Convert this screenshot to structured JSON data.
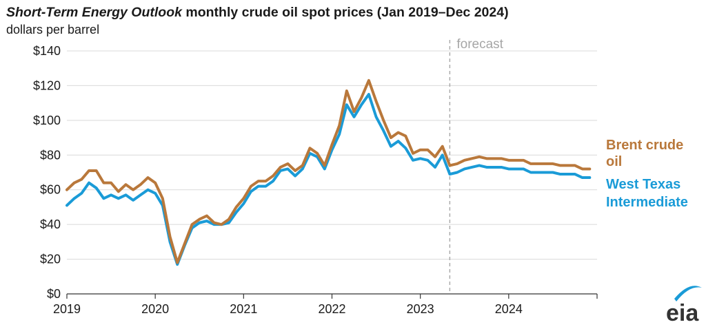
{
  "title_italic": "Short-Term Energy Outlook",
  "title_rest": " monthly crude oil spot prices (Jan 2019–Dec 2024)",
  "subtitle": "dollars per barrel",
  "forecast_label": "forecast",
  "logo_text": "eia",
  "colors": {
    "brent": "#b9783b",
    "wti": "#1a9bd7",
    "forecast_line": "#a6a6a6",
    "axis": "#333333",
    "grid": "#d9d9d9"
  },
  "chart_data": {
    "type": "line",
    "title": "Short-Term Energy Outlook monthly crude oil spot prices (Jan 2019–Dec 2024)",
    "ylabel": "dollars per barrel",
    "ylim": [
      0,
      140
    ],
    "yticks": [
      0,
      20,
      40,
      60,
      80,
      100,
      120,
      140
    ],
    "ytick_labels": [
      "$0",
      "$20",
      "$40",
      "$60",
      "$80",
      "$100",
      "$120",
      "$140"
    ],
    "xticks": [
      "2019",
      "2020",
      "2021",
      "2022",
      "2023",
      "2024"
    ],
    "x_range": [
      "2019-01",
      "2024-12"
    ],
    "grid": "horizontal",
    "forecast_start": "2023-05",
    "x": [
      "2019-01",
      "2019-02",
      "2019-03",
      "2019-04",
      "2019-05",
      "2019-06",
      "2019-07",
      "2019-08",
      "2019-09",
      "2019-10",
      "2019-11",
      "2019-12",
      "2020-01",
      "2020-02",
      "2020-03",
      "2020-04",
      "2020-05",
      "2020-06",
      "2020-07",
      "2020-08",
      "2020-09",
      "2020-10",
      "2020-11",
      "2020-12",
      "2021-01",
      "2021-02",
      "2021-03",
      "2021-04",
      "2021-05",
      "2021-06",
      "2021-07",
      "2021-08",
      "2021-09",
      "2021-10",
      "2021-11",
      "2021-12",
      "2022-01",
      "2022-02",
      "2022-03",
      "2022-04",
      "2022-05",
      "2022-06",
      "2022-07",
      "2022-08",
      "2022-09",
      "2022-10",
      "2022-11",
      "2022-12",
      "2023-01",
      "2023-02",
      "2023-03",
      "2023-04",
      "2023-05",
      "2023-06",
      "2023-07",
      "2023-08",
      "2023-09",
      "2023-10",
      "2023-11",
      "2023-12",
      "2024-01",
      "2024-02",
      "2024-03",
      "2024-04",
      "2024-05",
      "2024-06",
      "2024-07",
      "2024-08",
      "2024-09",
      "2024-10",
      "2024-11",
      "2024-12"
    ],
    "series": [
      {
        "name": "Brent crude oil",
        "values": [
          60,
          64,
          66,
          71,
          71,
          64,
          64,
          59,
          63,
          60,
          63,
          67,
          64,
          55,
          33,
          18,
          29,
          40,
          43,
          45,
          41,
          40,
          43,
          50,
          55,
          62,
          65,
          65,
          68,
          73,
          75,
          71,
          74,
          84,
          81,
          74,
          86,
          97,
          117,
          105,
          113,
          123,
          111,
          100,
          90,
          93,
          91,
          81,
          83,
          83,
          79,
          85,
          74,
          75,
          77,
          78,
          79,
          78,
          78,
          78,
          77,
          77,
          77,
          75,
          75,
          75,
          75,
          74,
          74,
          74,
          72,
          72
        ]
      },
      {
        "name": "West Texas Intermediate",
        "values": [
          51,
          55,
          58,
          64,
          61,
          55,
          57,
          55,
          57,
          54,
          57,
          60,
          58,
          51,
          30,
          17,
          28,
          38,
          41,
          42,
          40,
          40,
          41,
          47,
          52,
          59,
          62,
          62,
          65,
          71,
          72,
          68,
          72,
          81,
          79,
          72,
          83,
          92,
          109,
          102,
          109,
          115,
          102,
          94,
          85,
          88,
          84,
          77,
          78,
          77,
          73,
          80,
          69,
          70,
          72,
          73,
          74,
          73,
          73,
          73,
          72,
          72,
          72,
          70,
          70,
          70,
          70,
          69,
          69,
          69,
          67,
          67
        ]
      }
    ],
    "series_labels": [
      {
        "series": "Brent crude oil",
        "lines": [
          "Brent crude",
          "oil"
        ]
      },
      {
        "series": "West Texas Intermediate",
        "lines": [
          "West Texas",
          "Intermediate"
        ]
      }
    ]
  }
}
